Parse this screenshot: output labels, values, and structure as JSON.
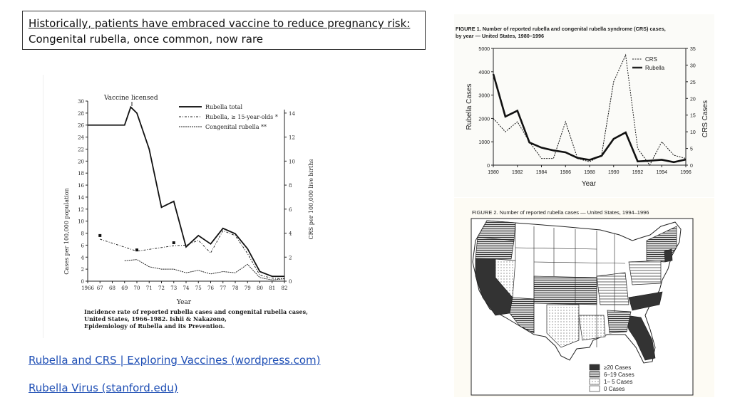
{
  "slide": {
    "title_line1": "Historically, patients have embraced vaccine to reduce pregnancy risk:",
    "title_line2": "Congenital rubella, once common, now rare",
    "link1": "Rubella and CRS | Exploring Vaccines (wordpress.com)",
    "link2": "Rubella Virus (stanford.edu)"
  },
  "left_figure": {
    "annotation": "Vaccine licensed",
    "legend": [
      "Rubella total",
      "Rubella, ≥ 15-year-olds *",
      "Congenital rubella **"
    ],
    "ylabel_left": "Cases per 100,000 population",
    "ylabel_right": "CRS per 100,000 live births",
    "xlabel": "Year",
    "caption_lines": [
      "Incidence rate of reported rubella cases and congenital rubella cases,",
      "United States, 1966-1982. Ishii & Nakazono,",
      "Epidemiology of Rubella and its Prevention."
    ]
  },
  "fig1": {
    "title_line1": "FIGURE 1. Number of reported rubella and congenital rubella syndrome (CRS) cases,",
    "title_line2": "by year — United States, 1980–1996",
    "ylabel_left": "Rubella Cases",
    "ylabel_right": "CRS Cases",
    "xlabel": "Year",
    "legend": [
      "CRS",
      "Rubella"
    ]
  },
  "fig2": {
    "title": "FIGURE 2. Number of reported rubella cases — United States, 1994–1996",
    "legend": [
      "≥20 Cases",
      "6–19 Cases",
      "1– 5 Cases",
      "0 Cases"
    ]
  },
  "chart_data": [
    {
      "type": "line",
      "x": [
        1966,
        1967,
        1968,
        1969,
        1970,
        1971,
        1972,
        1973,
        1974,
        1975,
        1976,
        1977,
        1978,
        1979,
        1980,
        1981,
        1982
      ],
      "xticks": [
        "1966",
        "67",
        "68",
        "69",
        "70",
        "71",
        "72",
        "73",
        "74",
        "75",
        "76",
        "77",
        "78",
        "79",
        "80",
        "81",
        "82"
      ],
      "ylim": [
        0,
        30
      ],
      "yticks": [
        0,
        2,
        4,
        6,
        8,
        10,
        12,
        14,
        16,
        18,
        20,
        22,
        24,
        26,
        28,
        30
      ],
      "y2lim": [
        0,
        15
      ],
      "y2ticks": [
        0,
        2,
        4,
        6,
        8,
        10,
        12,
        14
      ],
      "series": [
        {
          "name": "Rubella total",
          "axis": "left",
          "x": [
            1966,
            1968,
            1969,
            1969.5,
            1970,
            1971,
            1972,
            1973,
            1974,
            1975,
            1976,
            1977,
            1978,
            1979,
            1980,
            1981,
            1982
          ],
          "values": [
            26,
            26,
            26,
            29,
            28,
            22,
            12.3,
            13.3,
            5.7,
            7.6,
            6.2,
            8.8,
            7.9,
            5.4,
            1.6,
            0.8,
            0.8
          ]
        },
        {
          "name": "Rubella, ≥ 15-year-olds *",
          "axis": "left",
          "x": [
            1967,
            1970,
            1973,
            1974,
            1975,
            1976,
            1977,
            1978,
            1979,
            1980,
            1981,
            1982
          ],
          "values": [
            7,
            5,
            5.9,
            6,
            6.8,
            4.7,
            8.4,
            7.6,
            4.6,
            1,
            0.5,
            0.4
          ]
        },
        {
          "name": "Congenital rubella **",
          "axis": "right",
          "x": [
            1969,
            1970,
            1971,
            1972,
            1973,
            1974,
            1975,
            1976,
            1977,
            1978,
            1979,
            1980,
            1981,
            1982
          ],
          "values": [
            1.7,
            1.8,
            1.2,
            1.0,
            1.0,
            0.7,
            0.9,
            0.6,
            0.8,
            0.7,
            1.4,
            0.3,
            0.1,
            0.2
          ]
        },
        {
          "name": "",
          "type": "scatter",
          "axis": "left",
          "x": [
            1967,
            1970,
            1973
          ],
          "values": [
            7.6,
            5.2,
            6.4
          ]
        }
      ]
    },
    {
      "type": "line",
      "x": [
        1980,
        1981,
        1982,
        1983,
        1984,
        1985,
        1986,
        1987,
        1988,
        1989,
        1990,
        1991,
        1992,
        1993,
        1994,
        1995,
        1996
      ],
      "xticks": [
        "1980",
        "1982",
        "1984",
        "1986",
        "1988",
        "1990",
        "1992",
        "1994",
        "1996"
      ],
      "ylim": [
        0,
        5000
      ],
      "yticks": [
        0,
        1000,
        2000,
        3000,
        4000,
        5000
      ],
      "y2lim": [
        0,
        35
      ],
      "y2ticks": [
        0,
        5,
        10,
        15,
        20,
        25,
        30,
        35
      ],
      "legend": "top-right",
      "series": [
        {
          "name": "CRS",
          "axis": "right",
          "values": [
            14,
            10,
            13,
            7,
            2,
            2,
            13,
            2,
            1,
            3,
            25,
            33,
            5,
            0,
            7,
            3,
            2
          ]
        },
        {
          "name": "Rubella",
          "axis": "left",
          "values": [
            3900,
            2080,
            2330,
            970,
            750,
            630,
            550,
            310,
            225,
            400,
            1125,
            1400,
            160,
            190,
            230,
            130,
            240
          ]
        }
      ]
    }
  ]
}
